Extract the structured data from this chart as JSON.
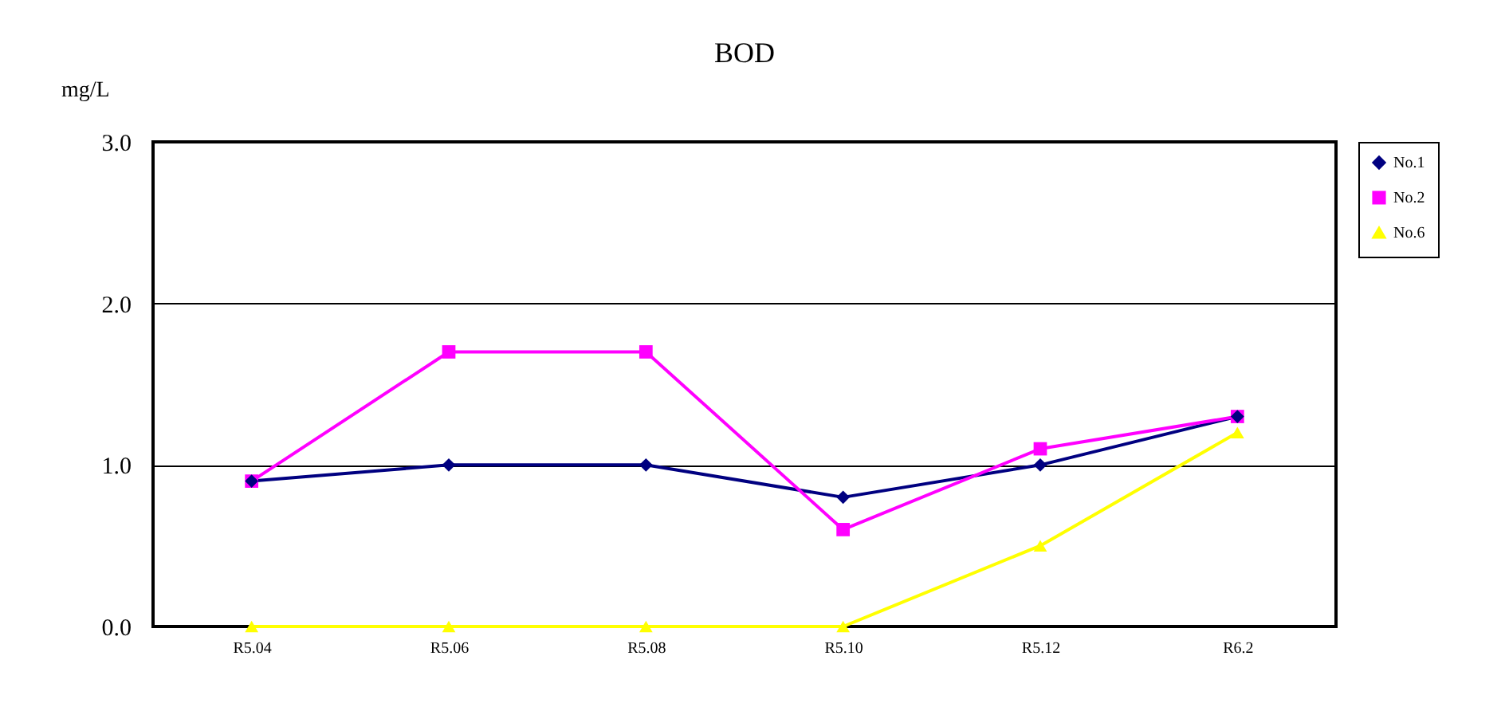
{
  "chart_data": {
    "type": "line",
    "title": "BOD",
    "ylabel": "mg/L",
    "categories": [
      "R5.04",
      "R5.06",
      "R5.08",
      "R5.10",
      "R5.12",
      "R6.2"
    ],
    "series": [
      {
        "name": "No.1",
        "color": "#000080",
        "marker": "diamond",
        "values": [
          0.9,
          1.0,
          1.0,
          0.8,
          1.0,
          1.3
        ]
      },
      {
        "name": "No.2",
        "color": "#ff00ff",
        "marker": "square",
        "values": [
          0.9,
          1.7,
          1.7,
          0.6,
          1.1,
          1.3
        ]
      },
      {
        "name": "No.6",
        "color": "#ffff00",
        "marker": "triangle",
        "values": [
          0,
          0,
          0,
          0,
          0.5,
          1.2
        ]
      }
    ],
    "ylim": [
      0,
      3
    ],
    "yticks": [
      {
        "value": 0,
        "label": "0.0"
      },
      {
        "value": 1,
        "label": "1.0"
      },
      {
        "value": 2,
        "label": "2.0"
      },
      {
        "value": 3,
        "label": "3.0"
      }
    ],
    "grid": "y",
    "legend": "right",
    "line_style": "solid"
  }
}
